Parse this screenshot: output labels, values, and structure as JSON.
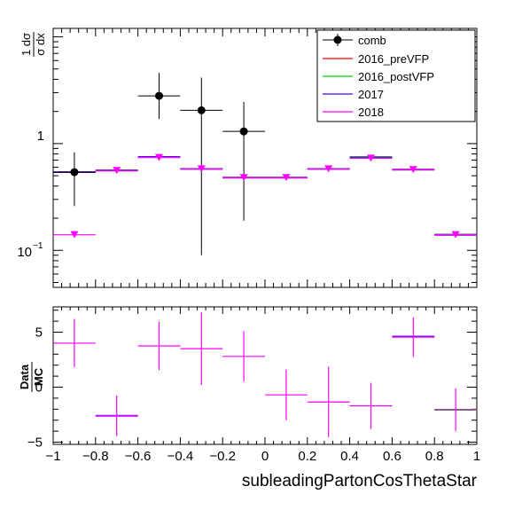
{
  "chart_data": [
    {
      "type": "scatter",
      "panel": "top",
      "ylabel_num": "1 dσ",
      "ylabel_den": "σ dx",
      "ylog": true,
      "ylim": [
        0.045,
        12
      ],
      "xlim": [
        -1,
        1
      ],
      "y_ticklabels": {
        "one": "1",
        "tenth_base": "10",
        "tenth_exp": "−1"
      },
      "series": [
        {
          "name": "comb",
          "color": "#000000",
          "style": "data-points",
          "x": [
            -0.9,
            -0.5,
            -0.3,
            -0.1
          ],
          "y": [
            0.54,
            2.8,
            2.05,
            1.3
          ],
          "y_low": [
            0.26,
            1.7,
            0.09,
            0.19
          ],
          "y_high": [
            0.83,
            4.6,
            4.15,
            2.45
          ],
          "x_half_width": [
            0.1,
            0.1,
            0.1,
            0.1
          ]
        },
        {
          "name": "2016_preVFP",
          "color": "#ff0000",
          "style": "step",
          "bins": [
            [
              -1,
              -0.8
            ],
            [
              -0.8,
              -0.6
            ],
            [
              -0.6,
              -0.4
            ],
            [
              -0.4,
              -0.2
            ],
            [
              -0.2,
              0.2
            ],
            [
              0.2,
              0.4
            ],
            [
              0.4,
              0.6
            ],
            [
              0.6,
              0.8
            ],
            [
              0.8,
              1.0
            ]
          ],
          "values": [
            0.54,
            0.56,
            0.75,
            0.58,
            0.48,
            0.58,
            0.74,
            0.57,
            0.14
          ]
        },
        {
          "name": "2016_postVFP",
          "color": "#00cc00",
          "style": "step",
          "bins": [
            [
              -1,
              -0.8
            ],
            [
              -0.8,
              -0.6
            ],
            [
              -0.6,
              -0.4
            ],
            [
              -0.4,
              -0.2
            ],
            [
              -0.2,
              0.2
            ],
            [
              0.2,
              0.4
            ],
            [
              0.4,
              0.6
            ],
            [
              0.6,
              0.8
            ],
            [
              0.8,
              1.0
            ]
          ],
          "values": [
            0.54,
            0.56,
            0.75,
            0.58,
            0.48,
            0.58,
            0.75,
            0.57,
            0.14
          ]
        },
        {
          "name": "2017",
          "color": "#5500ee",
          "style": "step",
          "bins": [
            [
              -1,
              -0.8
            ],
            [
              -0.8,
              -0.6
            ],
            [
              -0.6,
              -0.4
            ],
            [
              -0.4,
              -0.2
            ],
            [
              -0.2,
              0.2
            ],
            [
              0.2,
              0.4
            ],
            [
              0.4,
              0.6
            ],
            [
              0.6,
              0.8
            ],
            [
              0.8,
              1.0
            ]
          ],
          "values": [
            0.54,
            0.56,
            0.75,
            0.58,
            0.48,
            0.58,
            0.74,
            0.57,
            0.14
          ]
        },
        {
          "name": "2018",
          "color": "#ff00ff",
          "style": "triangle-markers",
          "x": [
            -0.9,
            -0.7,
            -0.5,
            -0.3,
            -0.1,
            0.1,
            0.3,
            0.5,
            0.7,
            0.9
          ],
          "y": [
            0.14,
            0.56,
            0.74,
            0.58,
            0.48,
            0.48,
            0.58,
            0.73,
            0.57,
            0.14
          ],
          "x_half_width": [
            0.1,
            0.1,
            0.1,
            0.1,
            0.1,
            0.1,
            0.1,
            0.1,
            0.1,
            0.1
          ]
        }
      ],
      "legend_position": "top-right"
    },
    {
      "type": "scatter",
      "panel": "bottom",
      "ylabel_num": "Data",
      "ylabel_den": "MC",
      "xlabel": "subleadingPartonCosThetaStar",
      "ylim": [
        -5.2,
        7.3
      ],
      "xlim": [
        -1,
        1
      ],
      "x_ticks": [
        -1,
        -0.8,
        -0.6,
        -0.4,
        -0.2,
        0,
        0.2,
        0.4,
        0.6,
        0.8,
        1
      ],
      "x_ticklabels": [
        "−1",
        "−0.8",
        "−0.6",
        "−0.4",
        "−0.2",
        "0",
        "0.2",
        "0.4",
        "0.6",
        "0.8",
        "1"
      ],
      "y_ticks": [
        -5,
        0,
        5
      ],
      "y_ticklabels": [
        "−5",
        "0",
        "5"
      ],
      "hlines": [
        {
          "color": "#5500ee",
          "x0": -0.8,
          "x1": -0.6,
          "y": -2.6
        },
        {
          "color": "#5500ee",
          "x0": 0.6,
          "x1": 0.8,
          "y": 4.6
        },
        {
          "color": "#00cc00",
          "x0": 0.8,
          "x1": 1.0,
          "y": -2.05
        }
      ],
      "points": {
        "color": "#ff00ff",
        "x": [
          -0.9,
          -0.7,
          -0.5,
          -0.3,
          -0.1,
          0.1,
          0.3,
          0.5,
          0.7,
          0.9
        ],
        "y": [
          4.0,
          -2.6,
          3.75,
          3.5,
          2.8,
          -0.7,
          -1.35,
          -1.7,
          4.55,
          -2.05
        ],
        "y_err": [
          2.2,
          1.85,
          2.2,
          3.3,
          2.3,
          2.3,
          3.2,
          2.1,
          1.8,
          1.95
        ],
        "x_half_width": [
          0.1,
          0.1,
          0.1,
          0.1,
          0.1,
          0.1,
          0.1,
          0.1,
          0.1,
          0.1
        ]
      }
    }
  ]
}
